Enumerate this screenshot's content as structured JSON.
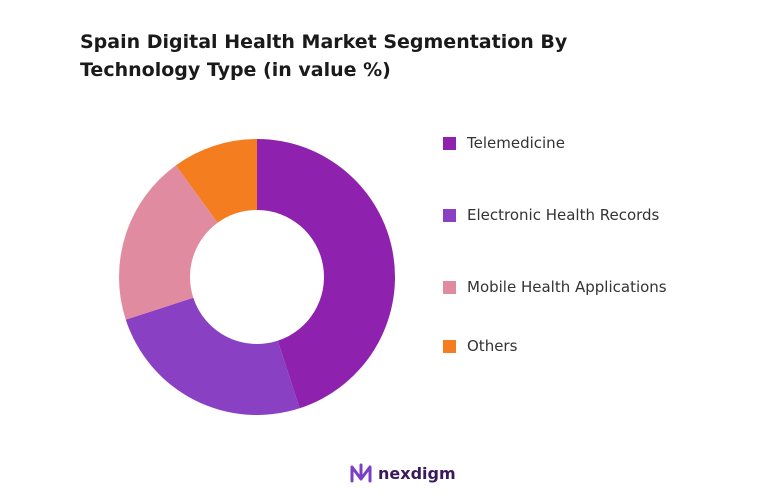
{
  "chart_data": {
    "type": "pie",
    "donut": true,
    "title": "Spain Digital Health Market Segmentation By Technology Type (in value %)",
    "categories": [
      "Telemedicine",
      "Electronic Health Records",
      "Mobile Health Applications",
      "Others"
    ],
    "values": [
      45,
      25,
      20,
      10
    ],
    "colors": [
      "#8E22AE",
      "#8A40C2",
      "#E18BA1",
      "#F47D20"
    ],
    "legend": "right"
  },
  "logo": {
    "text": "nexdigm"
  }
}
